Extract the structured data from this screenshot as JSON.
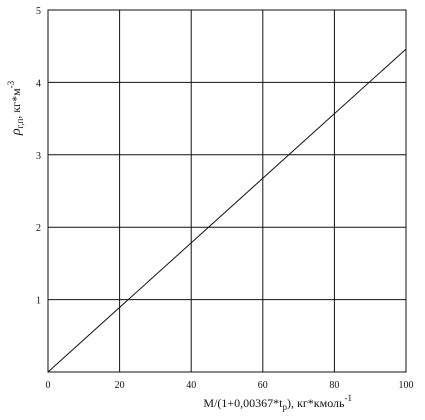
{
  "chart_data": {
    "type": "line",
    "title": "",
    "xlabel_main": "M/(1+0,00367*t",
    "xlabel_sub": "p",
    "xlabel_tail": "), кг*кмоль",
    "xlabel_sup": "-1",
    "ylabel_main": "ρ",
    "ylabel_sub": "г,п",
    "ylabel_tail": ", кг*м",
    "ylabel_sup": "-3",
    "xlim": [
      0,
      100
    ],
    "ylim": [
      0,
      5
    ],
    "xticks": [
      0,
      20,
      40,
      60,
      80,
      100
    ],
    "yticks": [
      1,
      2,
      3,
      4,
      5
    ],
    "grid": true,
    "series": [
      {
        "x": [
          0,
          100
        ],
        "y": [
          0,
          4.46
        ]
      }
    ]
  }
}
